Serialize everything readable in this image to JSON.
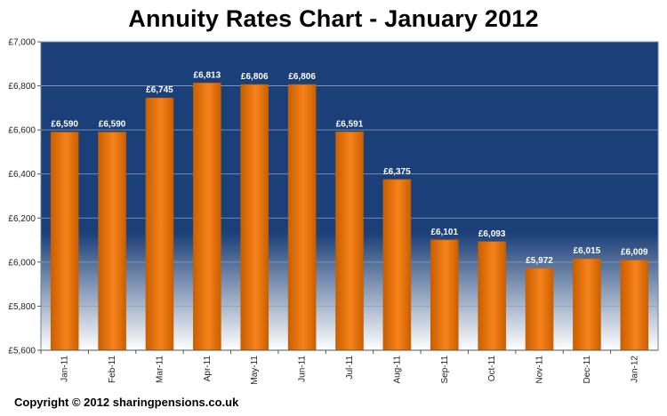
{
  "chart_data": {
    "type": "bar",
    "title": "Annuity Rates Chart - January 2012",
    "xlabel": "",
    "ylabel": "",
    "categories": [
      "Jan-11",
      "Feb-11",
      "Mar-11",
      "Apr-11",
      "May-11",
      "Jun-11",
      "Jul-11",
      "Aug-11",
      "Sep-11",
      "Oct-11",
      "Nov-11",
      "Dec-11",
      "Jan-12"
    ],
    "values": [
      6590,
      6590,
      6745,
      6813,
      6806,
      6806,
      6591,
      6375,
      6101,
      6093,
      5972,
      6015,
      6009
    ],
    "data_labels": [
      "£6,590",
      "£6,590",
      "£6,745",
      "£6,813",
      "£6,806",
      "£6,806",
      "£6,591",
      "£6,375",
      "£6,101",
      "£6,093",
      "£5,972",
      "£6,015",
      "£6,009"
    ],
    "ylim": [
      5600,
      7000
    ],
    "yticks": [
      5600,
      5800,
      6000,
      6200,
      6400,
      6600,
      6800,
      7000
    ],
    "ytick_labels": [
      "£5,600",
      "£5,800",
      "£6,000",
      "£6,200",
      "£6,400",
      "£6,600",
      "£6,800",
      "£7,000"
    ],
    "grid": true,
    "legend": "none",
    "colors": {
      "bar": "#f7821b",
      "bar_edge": "#c95f00",
      "plot_bg_top": "#1b3f78",
      "plot_bg_bottom": "#ffffff",
      "gridline": "#8fa3c2",
      "data_label": "#ffffff"
    }
  },
  "footer": {
    "copyright": "Copyright © 2012 sharingpensions.co.uk"
  }
}
